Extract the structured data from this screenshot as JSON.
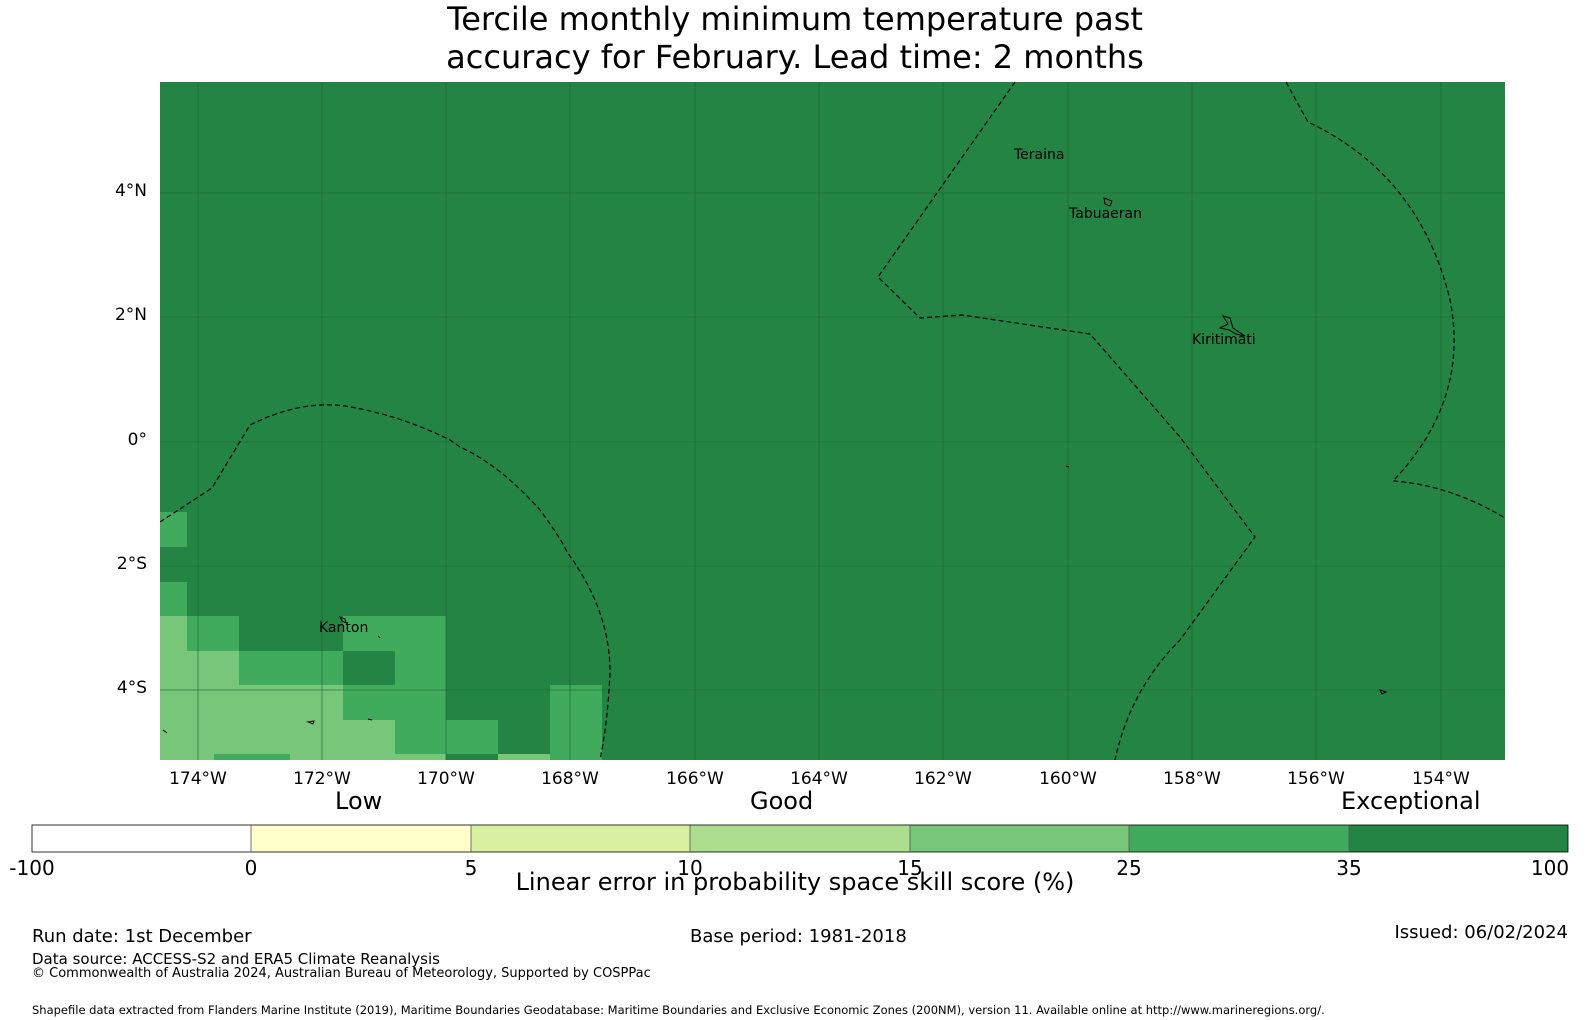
{
  "title": {
    "line1": "Tercile monthly minimum temperature past",
    "line2": "accuracy for February. Lead time: 2 months"
  },
  "map": {
    "background_color": "#238443",
    "lat_labels": [
      "4°N",
      "2°N",
      "0°",
      "2°S",
      "4°S"
    ],
    "lon_labels": [
      "174°W",
      "172°W",
      "170°W",
      "168°W",
      "166°W",
      "164°W",
      "162°W",
      "160°W",
      "158°W",
      "156°W",
      "154°W"
    ],
    "places": {
      "teraina": "Teraina",
      "tabuaeran": "Tabuaeran",
      "kiritimati": "Kiritimati",
      "kanton": "Kanton"
    }
  },
  "legend": {
    "categories": {
      "low": "Low",
      "good": "Good",
      "exceptional": "Exceptional"
    },
    "ticks": [
      "-100",
      "0",
      "5",
      "10",
      "15",
      "25",
      "35",
      "100"
    ],
    "colors": [
      "#ffffff",
      "#ffffcc",
      "#d9f0a3",
      "#addd8e",
      "#78c679",
      "#41ab5d",
      "#238443"
    ],
    "title": "Linear error in probability space skill score (%)"
  },
  "footer": {
    "run_date": "Run date: 1st December",
    "base_period": "Base period: 1981-2018",
    "issued": "Issued: 06/02/2024",
    "data_source": "Data source: ACCESS-S2 and ERA5 Climate Reanalysis",
    "copyright": "© Commonwealth of Australia 2024, Australian Bureau of Meteorology, Supported by COSPPac",
    "shapefile": "Shapefile data extracted from Flanders Marine Institute (2019), Maritime Boundaries Geodatabase: Maritime Boundaries and Exclusive Economic Zones (200NM), version 11. Available online at http://www.marineregions.org/."
  }
}
